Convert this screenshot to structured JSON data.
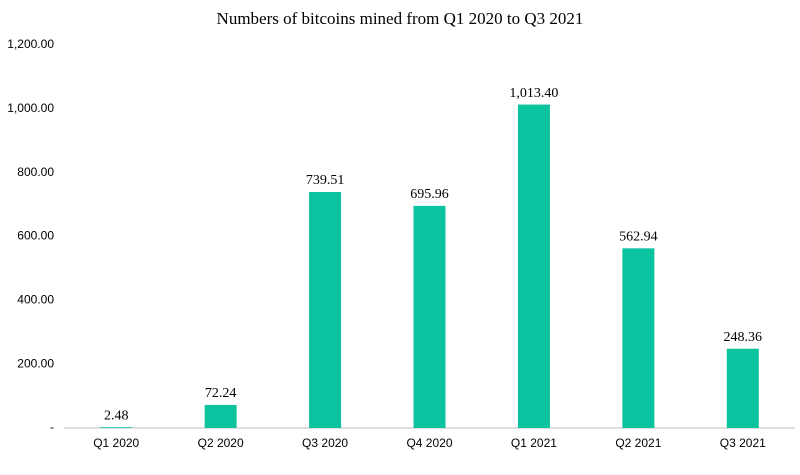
{
  "chart_data": {
    "type": "bar",
    "title": "Numbers of bitcoins mined from Q1 2020 to Q3 2021",
    "categories": [
      "Q1 2020",
      "Q2 2020",
      "Q3 2020",
      "Q4 2020",
      "Q1 2021",
      "Q2 2021",
      "Q3 2021"
    ],
    "values": [
      2.48,
      72.24,
      739.51,
      695.96,
      1013.4,
      562.94,
      248.36
    ],
    "value_labels": [
      "2.48",
      "72.24",
      "739.51",
      "695.96",
      "1,013.40",
      "562.94",
      "248.36"
    ],
    "color": "#0cc39f",
    "ylim": [
      0,
      1200
    ],
    "yticks": [
      {
        "value": 0,
        "label": "-"
      },
      {
        "value": 200,
        "label": "200.00"
      },
      {
        "value": 400,
        "label": "400.00"
      },
      {
        "value": 600,
        "label": "600.00"
      },
      {
        "value": 800,
        "label": "800.00"
      },
      {
        "value": 1000,
        "label": "1,000.00"
      },
      {
        "value": 1200,
        "label": "1,200.00"
      }
    ],
    "grid": false
  }
}
